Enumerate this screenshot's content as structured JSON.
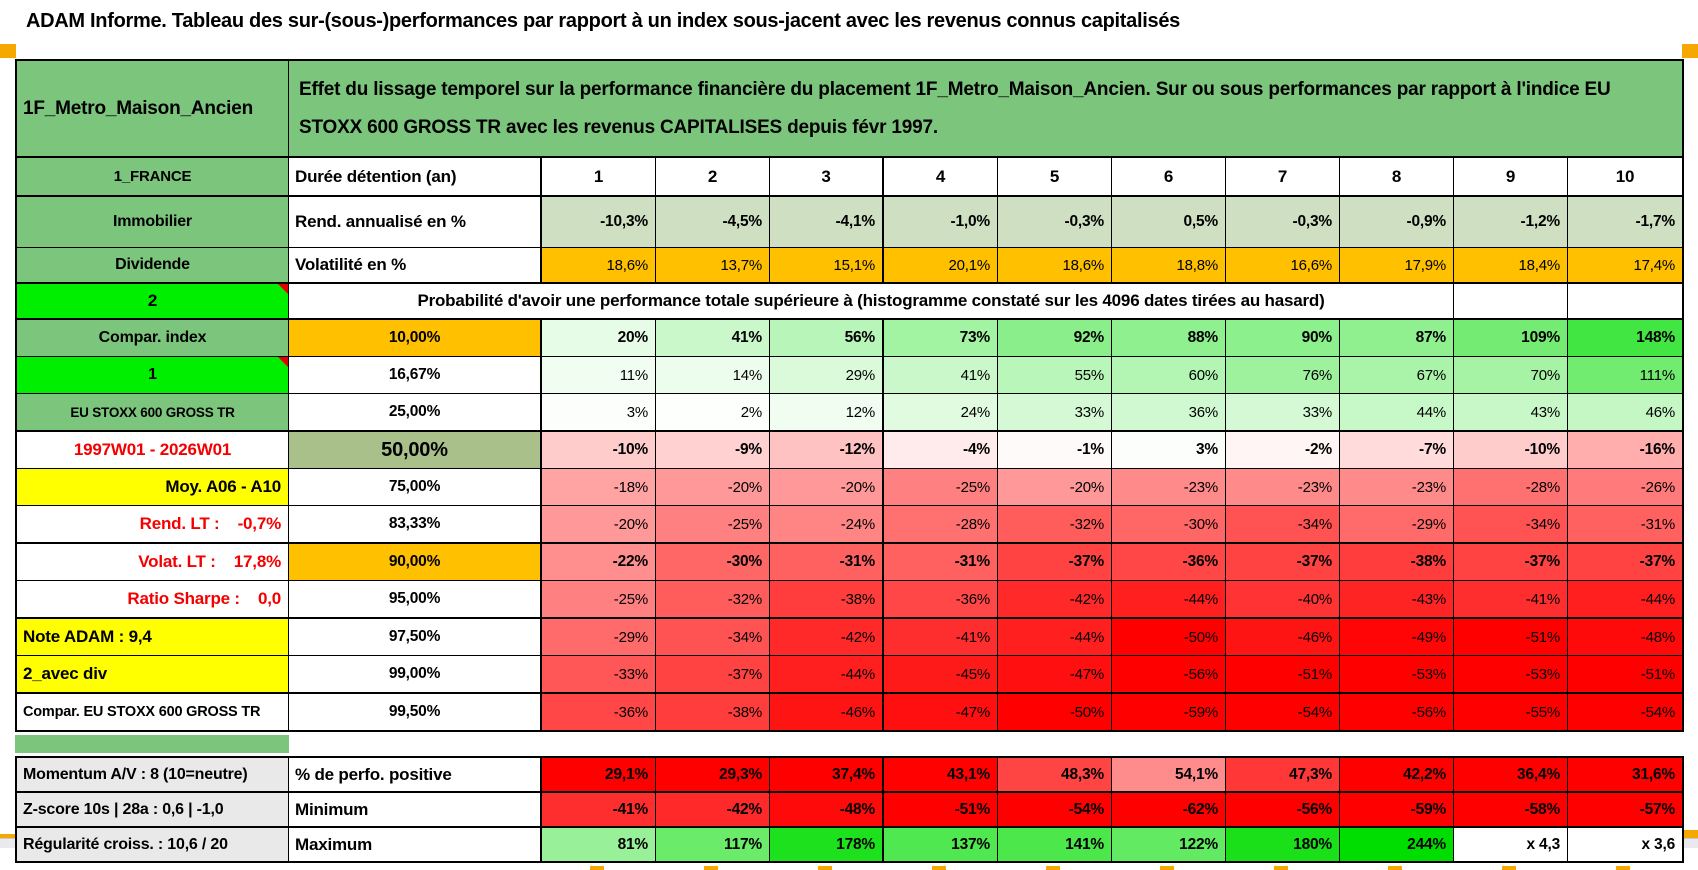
{
  "app": {
    "title": "ADAM Informe. Tableau des sur-(sous-)performances par rapport à un index sous-jacent avec les revenus connus capitalisés"
  },
  "colors": {
    "green_header": "#7cc57c",
    "bright_green": "#00ee00",
    "orange": "#ffc000",
    "yellow": "#ffff00",
    "sage": "#a9c08a",
    "pale_green": "#cfe0c2",
    "gray_label": "#e9e9e9",
    "red_text": "#f40000",
    "heat_green_max": "#00dd00",
    "heat_red_max": "#ff0000",
    "corner_marker": "#e00000",
    "page_marker_orange": "#f5a800",
    "bottom_strip": "#e9e9ee"
  },
  "table": {
    "placement": "1F_Metro_Maison_Ancien",
    "description": "Effet du lissage temporel sur la performance financière du placement 1F_Metro_Maison_Ancien. Sur ou sous performances par rapport à l'indice EU STOXX 600 GROSS TR avec les revenus CAPITALISES depuis févr 1997.",
    "col_header_row": {
      "a": "1_FRANCE",
      "b": "Durée détention (an)",
      "columns": [
        "1",
        "2",
        "3",
        "4",
        "5",
        "6",
        "7",
        "8",
        "9",
        "10"
      ]
    },
    "metric_rows": [
      {
        "id": "rendement",
        "a": "Immobilier",
        "b": "Rend. annualisé en %",
        "bold": true,
        "values": [
          "-10,3%",
          "-4,5%",
          "-4,1%",
          "-1,0%",
          "-0,3%",
          "0,5%",
          "-0,3%",
          "-0,9%",
          "-1,2%",
          "-1,7%"
        ]
      },
      {
        "id": "volatilite",
        "a": "Dividende",
        "b": "Volatilité en %",
        "bold": false,
        "values": [
          "18,6%",
          "13,7%",
          "15,1%",
          "20,1%",
          "18,6%",
          "18,8%",
          "16,6%",
          "17,9%",
          "18,4%",
          "17,4%"
        ]
      }
    ],
    "prob_header": {
      "a": "2",
      "text": "Probabilité d'avoir une performance totale supérieure à (histogramme constaté sur les 4096 dates tirées au hasard)"
    },
    "prob_rows": [
      {
        "a": "Compar. index",
        "a_style": "green",
        "b": "10,00%",
        "b_bg": "orange",
        "bold": true,
        "values": [
          "20%",
          "41%",
          "56%",
          "73%",
          "92%",
          "88%",
          "90%",
          "87%",
          "109%",
          "148%"
        ]
      },
      {
        "a": "1",
        "a_style": "bright",
        "corner": true,
        "b": "16,67%",
        "bold": false,
        "values": [
          "11%",
          "14%",
          "29%",
          "41%",
          "55%",
          "60%",
          "76%",
          "67%",
          "70%",
          "111%"
        ]
      },
      {
        "a": "EU STOXX 600 GROSS TR",
        "a_style": "green-small",
        "b": "25,00%",
        "bold": false,
        "thick_bottom": true,
        "values": [
          "3%",
          "2%",
          "12%",
          "24%",
          "33%",
          "36%",
          "33%",
          "44%",
          "43%",
          "46%"
        ]
      },
      {
        "a": "1997W01 - 2026W01",
        "a_style": "red-center",
        "b": "50,00%",
        "b_bg": "sage",
        "b_big": true,
        "bold": true,
        "values": [
          "-10%",
          "-9%",
          "-12%",
          "-4%",
          "-1%",
          "3%",
          "-2%",
          "-7%",
          "-10%",
          "-16%"
        ]
      },
      {
        "a": "Moy. A06 - A10",
        "a_style": "yellow-right",
        "b": "75,00%",
        "bold": false,
        "values": [
          "-18%",
          "-20%",
          "-20%",
          "-25%",
          "-20%",
          "-23%",
          "-23%",
          "-23%",
          "-28%",
          "-26%"
        ]
      },
      {
        "a": "Rend. LT :    -0,7%",
        "a_style": "red-right",
        "b": "83,33%",
        "bold": false,
        "thick_bottom": true,
        "values": [
          "-20%",
          "-25%",
          "-24%",
          "-28%",
          "-32%",
          "-30%",
          "-34%",
          "-29%",
          "-34%",
          "-31%"
        ]
      },
      {
        "a": "Volat. LT :    17,8%",
        "a_style": "red-right",
        "b": "90,00%",
        "b_bg": "orange",
        "bold": true,
        "values": [
          "-22%",
          "-30%",
          "-31%",
          "-31%",
          "-37%",
          "-36%",
          "-37%",
          "-38%",
          "-37%",
          "-37%"
        ]
      },
      {
        "a": "Ratio Sharpe :    0,0",
        "a_style": "red-right",
        "b": "95,00%",
        "bold": false,
        "thick_bottom": true,
        "values": [
          "-25%",
          "-32%",
          "-38%",
          "-36%",
          "-42%",
          "-44%",
          "-40%",
          "-43%",
          "-41%",
          "-44%"
        ]
      },
      {
        "a": "Note ADAM : 9,4",
        "a_style": "yellow-left",
        "b": "97,50%",
        "bold": false,
        "values": [
          "-29%",
          "-34%",
          "-42%",
          "-41%",
          "-44%",
          "-50%",
          "-46%",
          "-49%",
          "-51%",
          "-48%"
        ]
      },
      {
        "a": "2_avec div",
        "a_style": "yellow-left",
        "b": "99,00%",
        "bold": false,
        "thick_bottom": true,
        "values": [
          "-33%",
          "-37%",
          "-44%",
          "-45%",
          "-47%",
          "-56%",
          "-51%",
          "-53%",
          "-53%",
          "-51%"
        ]
      },
      {
        "a": "Compar. EU STOXX 600 GROSS TR",
        "a_style": "plain-left",
        "b": "99,50%",
        "bold": false,
        "values": [
          "-36%",
          "-38%",
          "-46%",
          "-47%",
          "-50%",
          "-59%",
          "-54%",
          "-56%",
          "-55%",
          "-54%"
        ]
      }
    ],
    "bottom_rows": [
      {
        "a": "Momentum A/V : 8 (10=neutre)",
        "b": "% de perfo. positive",
        "scale": "perfo",
        "values": [
          "29,1%",
          "29,3%",
          "37,4%",
          "43,1%",
          "48,3%",
          "54,1%",
          "47,3%",
          "42,2%",
          "36,4%",
          "31,6%"
        ]
      },
      {
        "a": "Z-score 10s | 28a : 0,6 | -1,0",
        "b": "Minimum",
        "scale": "heat",
        "values": [
          "-41%",
          "-42%",
          "-48%",
          "-51%",
          "-54%",
          "-62%",
          "-56%",
          "-59%",
          "-58%",
          "-57%"
        ]
      },
      {
        "a": "Régularité croiss. : 10,6 / 20",
        "b": "Maximum",
        "scale": "heat",
        "values": [
          "81%",
          "117%",
          "178%",
          "137%",
          "141%",
          "122%",
          "180%",
          "244%",
          "x 4,3",
          "x 3,6"
        ]
      }
    ]
  }
}
